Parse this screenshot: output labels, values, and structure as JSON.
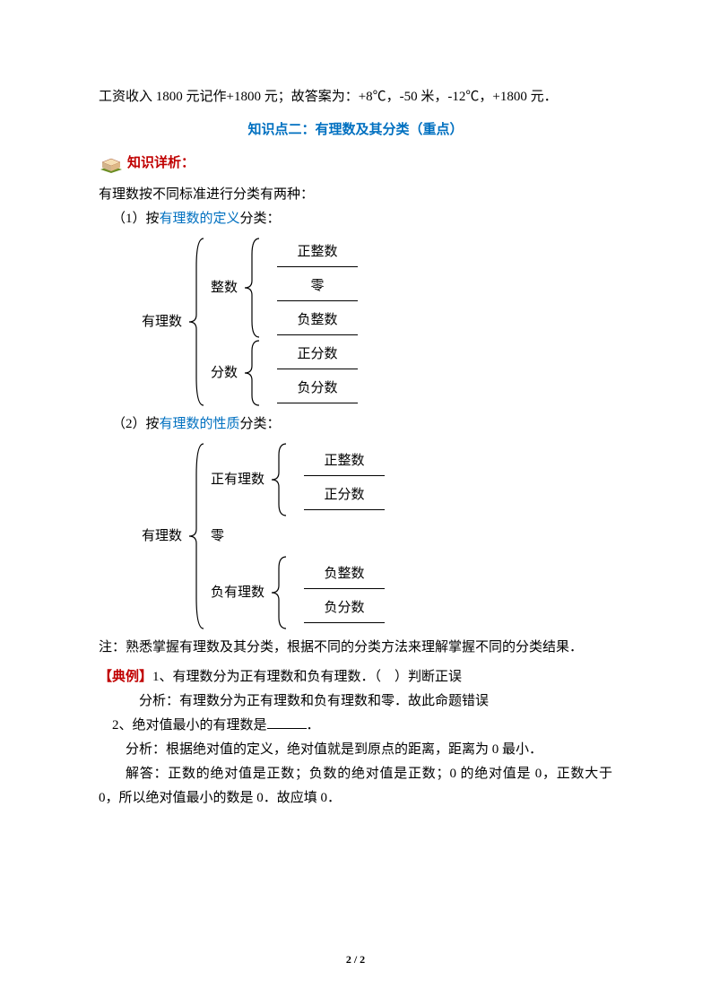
{
  "intro": "工资收入 1800 元记作+1800 元；故答案为：+8℃，-50 米，-12℃，+1800 元．",
  "section_title": "知识点二：有理数及其分类（重点）",
  "analysis_label": "知识详析：",
  "classify_intro": "有理数按不同标准进行分类有两种：",
  "c1_prefix": "（1）按",
  "c1_link": "有理数的定义",
  "c1_suffix": "分类：",
  "c2_prefix": "（2）按",
  "c2_link": "有理数的性质",
  "c2_suffix": "分类：",
  "note": "注：熟悉掌握有理数及其分类，根据不同的分类方法来理解掌握不同的分类结果．",
  "ex_label": "【典例】",
  "ex1_title": "1、有理数分为正有理数和负有理数．（　）判断正误",
  "ex1_analysis": "分析：有理数分为正有理数和负有理数和零．故此命题错误",
  "ex2_title": "2、绝对值最小的有理数是",
  "ex2_tail": "．",
  "ex2_analysis": "分析：根据绝对值的定义，绝对值就是到原点的距离，距离为 0 最小．",
  "ex2_answer": "解答：正数的绝对值是正数；负数的绝对值是正数；0 的绝对值是 0，正数大于 0，所以绝对值最小的数是 0．故应填 0．",
  "footer": "2 / 2",
  "colors": {
    "blue": "#0070c0",
    "red": "#c00000"
  },
  "diagram1": {
    "root": "有理数",
    "branches": [
      {
        "label": "整数",
        "leaves": [
          "正整数",
          "零",
          "负整数"
        ]
      },
      {
        "label": "分数",
        "leaves": [
          "正分数",
          "负分数"
        ]
      }
    ]
  },
  "diagram2": {
    "root": "有理数",
    "branches": [
      {
        "label": "正有理数",
        "leaves": [
          "正整数",
          "正分数"
        ]
      },
      {
        "label": "零",
        "leaves": []
      },
      {
        "label": "负有理数",
        "leaves": [
          "负整数",
          "负分数"
        ]
      }
    ]
  },
  "brace_color": "#000000",
  "icon": {
    "fill1": "#6b8e23",
    "fill2": "#a0522d",
    "fill3": "#f5deb3"
  }
}
